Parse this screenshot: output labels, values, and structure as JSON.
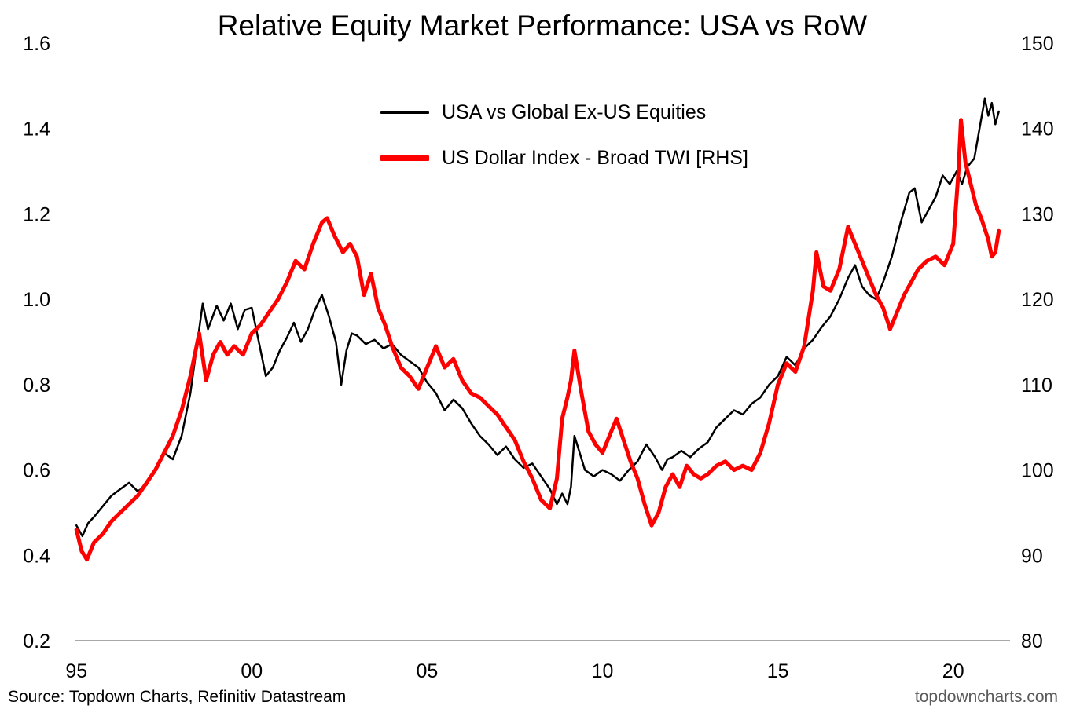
{
  "title": "Relative Equity Market Performance: USA vs RoW",
  "source": "Source: Topdown Charts, Refinitiv Datastream",
  "watermark": "topdowncharts.com",
  "colors": {
    "series_black": "#000000",
    "series_red": "#FF0000",
    "axis_line": "#8c8c8c",
    "watermark_gray": "#595959"
  },
  "legend": [
    {
      "label": "USA vs Global Ex-US Equities",
      "color": "#000000",
      "thickness": 3
    },
    {
      "label": "US Dollar Index - Broad TWI [RHS]",
      "color": "#FF0000",
      "thickness": 7
    }
  ],
  "chart_data": {
    "type": "line",
    "title": "Relative Equity Market Performance: USA vs RoW",
    "grid": false,
    "legend_position": "top-center-inside",
    "x_axis": {
      "range": [
        1994.95,
        2021.62
      ],
      "ticks": [
        1995,
        2000,
        2005,
        2010,
        2015,
        2020
      ],
      "labels": [
        "95",
        "00",
        "05",
        "10",
        "15",
        "20"
      ]
    },
    "left_axis": {
      "range": [
        0.2,
        1.6
      ],
      "ticks": [
        0.2,
        0.4,
        0.6,
        0.8,
        1.0,
        1.2,
        1.4,
        1.6
      ],
      "labels": [
        "0.2",
        "0.4",
        "0.6",
        "0.8",
        "1.0",
        "1.2",
        "1.4",
        "1.6"
      ]
    },
    "right_axis": {
      "range": [
        80,
        150
      ],
      "ticks": [
        80,
        90,
        100,
        110,
        120,
        130,
        140,
        150
      ],
      "labels": [
        "80",
        "90",
        "100",
        "110",
        "120",
        "130",
        "140",
        "150"
      ]
    },
    "series": [
      {
        "name": "USA vs Global Ex-US Equities",
        "axis": "left",
        "color": "#000000",
        "width": 2.5,
        "points": [
          [
            1995.0,
            0.47
          ],
          [
            1995.17,
            0.445
          ],
          [
            1995.33,
            0.475
          ],
          [
            1995.5,
            0.49
          ],
          [
            1995.75,
            0.515
          ],
          [
            1996.0,
            0.54
          ],
          [
            1996.25,
            0.555
          ],
          [
            1996.5,
            0.57
          ],
          [
            1996.75,
            0.55
          ],
          [
            1997.0,
            0.565
          ],
          [
            1997.25,
            0.6
          ],
          [
            1997.5,
            0.64
          ],
          [
            1997.75,
            0.625
          ],
          [
            1998.0,
            0.68
          ],
          [
            1998.25,
            0.78
          ],
          [
            1998.45,
            0.9
          ],
          [
            1998.6,
            0.99
          ],
          [
            1998.75,
            0.93
          ],
          [
            1999.0,
            0.985
          ],
          [
            1999.2,
            0.95
          ],
          [
            1999.4,
            0.99
          ],
          [
            1999.6,
            0.93
          ],
          [
            1999.8,
            0.975
          ],
          [
            2000.0,
            0.98
          ],
          [
            2000.2,
            0.9
          ],
          [
            2000.4,
            0.82
          ],
          [
            2000.6,
            0.84
          ],
          [
            2000.8,
            0.88
          ],
          [
            2001.0,
            0.91
          ],
          [
            2001.2,
            0.945
          ],
          [
            2001.4,
            0.9
          ],
          [
            2001.6,
            0.93
          ],
          [
            2001.8,
            0.975
          ],
          [
            2002.0,
            1.01
          ],
          [
            2002.2,
            0.96
          ],
          [
            2002.4,
            0.9
          ],
          [
            2002.55,
            0.8
          ],
          [
            2002.7,
            0.88
          ],
          [
            2002.85,
            0.92
          ],
          [
            2003.0,
            0.915
          ],
          [
            2003.25,
            0.895
          ],
          [
            2003.5,
            0.905
          ],
          [
            2003.75,
            0.885
          ],
          [
            2004.0,
            0.895
          ],
          [
            2004.25,
            0.87
          ],
          [
            2004.5,
            0.855
          ],
          [
            2004.75,
            0.84
          ],
          [
            2005.0,
            0.805
          ],
          [
            2005.25,
            0.78
          ],
          [
            2005.5,
            0.74
          ],
          [
            2005.75,
            0.765
          ],
          [
            2006.0,
            0.745
          ],
          [
            2006.25,
            0.71
          ],
          [
            2006.5,
            0.68
          ],
          [
            2006.75,
            0.66
          ],
          [
            2007.0,
            0.635
          ],
          [
            2007.25,
            0.655
          ],
          [
            2007.5,
            0.625
          ],
          [
            2007.75,
            0.605
          ],
          [
            2008.0,
            0.615
          ],
          [
            2008.25,
            0.585
          ],
          [
            2008.5,
            0.555
          ],
          [
            2008.7,
            0.52
          ],
          [
            2008.85,
            0.545
          ],
          [
            2009.0,
            0.52
          ],
          [
            2009.1,
            0.56
          ],
          [
            2009.2,
            0.68
          ],
          [
            2009.35,
            0.64
          ],
          [
            2009.5,
            0.6
          ],
          [
            2009.75,
            0.585
          ],
          [
            2010.0,
            0.6
          ],
          [
            2010.25,
            0.59
          ],
          [
            2010.5,
            0.575
          ],
          [
            2010.75,
            0.6
          ],
          [
            2011.0,
            0.62
          ],
          [
            2011.25,
            0.66
          ],
          [
            2011.5,
            0.63
          ],
          [
            2011.7,
            0.6
          ],
          [
            2011.85,
            0.625
          ],
          [
            2012.0,
            0.63
          ],
          [
            2012.25,
            0.645
          ],
          [
            2012.5,
            0.63
          ],
          [
            2012.75,
            0.65
          ],
          [
            2013.0,
            0.665
          ],
          [
            2013.25,
            0.7
          ],
          [
            2013.5,
            0.72
          ],
          [
            2013.75,
            0.74
          ],
          [
            2014.0,
            0.73
          ],
          [
            2014.25,
            0.755
          ],
          [
            2014.5,
            0.77
          ],
          [
            2014.75,
            0.8
          ],
          [
            2015.0,
            0.82
          ],
          [
            2015.25,
            0.865
          ],
          [
            2015.5,
            0.845
          ],
          [
            2015.75,
            0.885
          ],
          [
            2016.0,
            0.905
          ],
          [
            2016.25,
            0.935
          ],
          [
            2016.5,
            0.96
          ],
          [
            2016.75,
            1.0
          ],
          [
            2017.0,
            1.05
          ],
          [
            2017.2,
            1.08
          ],
          [
            2017.4,
            1.03
          ],
          [
            2017.6,
            1.01
          ],
          [
            2017.8,
            1.0
          ],
          [
            2018.0,
            1.04
          ],
          [
            2018.25,
            1.1
          ],
          [
            2018.5,
            1.18
          ],
          [
            2018.75,
            1.25
          ],
          [
            2018.9,
            1.26
          ],
          [
            2019.1,
            1.18
          ],
          [
            2019.3,
            1.21
          ],
          [
            2019.5,
            1.24
          ],
          [
            2019.7,
            1.29
          ],
          [
            2019.9,
            1.27
          ],
          [
            2020.1,
            1.3
          ],
          [
            2020.25,
            1.27
          ],
          [
            2020.4,
            1.31
          ],
          [
            2020.6,
            1.33
          ],
          [
            2020.75,
            1.4
          ],
          [
            2020.9,
            1.47
          ],
          [
            2021.0,
            1.43
          ],
          [
            2021.1,
            1.46
          ],
          [
            2021.2,
            1.41
          ],
          [
            2021.3,
            1.44
          ]
        ]
      },
      {
        "name": "US Dollar Index - Broad TWI [RHS]",
        "axis": "right",
        "color": "#FF0000",
        "width": 5,
        "points": [
          [
            1995.0,
            93
          ],
          [
            1995.15,
            90.5
          ],
          [
            1995.3,
            89.5
          ],
          [
            1995.5,
            91.5
          ],
          [
            1995.75,
            92.5
          ],
          [
            1996.0,
            94
          ],
          [
            1996.25,
            95
          ],
          [
            1996.5,
            96
          ],
          [
            1996.75,
            97
          ],
          [
            1997.0,
            98.5
          ],
          [
            1997.25,
            100
          ],
          [
            1997.5,
            102
          ],
          [
            1997.75,
            104
          ],
          [
            1998.0,
            107
          ],
          [
            1998.25,
            111
          ],
          [
            1998.5,
            116
          ],
          [
            1998.7,
            110.5
          ],
          [
            1998.9,
            113.5
          ],
          [
            1999.1,
            115
          ],
          [
            1999.3,
            113.5
          ],
          [
            1999.5,
            114.5
          ],
          [
            1999.75,
            113.5
          ],
          [
            2000.0,
            116
          ],
          [
            2000.25,
            117
          ],
          [
            2000.5,
            118.5
          ],
          [
            2000.75,
            120
          ],
          [
            2001.0,
            122
          ],
          [
            2001.25,
            124.5
          ],
          [
            2001.5,
            123.5
          ],
          [
            2001.75,
            126.5
          ],
          [
            2002.0,
            129
          ],
          [
            2002.15,
            129.5
          ],
          [
            2002.35,
            127.5
          ],
          [
            2002.6,
            125.5
          ],
          [
            2002.8,
            126.5
          ],
          [
            2003.0,
            125
          ],
          [
            2003.2,
            120.5
          ],
          [
            2003.4,
            123
          ],
          [
            2003.6,
            119
          ],
          [
            2003.8,
            117
          ],
          [
            2004.0,
            114.5
          ],
          [
            2004.25,
            112
          ],
          [
            2004.5,
            111
          ],
          [
            2004.75,
            109.5
          ],
          [
            2005.0,
            112
          ],
          [
            2005.25,
            114.5
          ],
          [
            2005.5,
            112
          ],
          [
            2005.75,
            113
          ],
          [
            2006.0,
            110.5
          ],
          [
            2006.25,
            109
          ],
          [
            2006.5,
            108.5
          ],
          [
            2006.75,
            107.5
          ],
          [
            2007.0,
            106.5
          ],
          [
            2007.25,
            105
          ],
          [
            2007.5,
            103.5
          ],
          [
            2007.75,
            101
          ],
          [
            2008.0,
            99
          ],
          [
            2008.25,
            96.5
          ],
          [
            2008.5,
            95.5
          ],
          [
            2008.7,
            99
          ],
          [
            2008.85,
            106
          ],
          [
            2009.0,
            108.5
          ],
          [
            2009.1,
            110.5
          ],
          [
            2009.2,
            114
          ],
          [
            2009.4,
            109
          ],
          [
            2009.6,
            104.5
          ],
          [
            2009.8,
            103
          ],
          [
            2010.0,
            102
          ],
          [
            2010.2,
            104
          ],
          [
            2010.4,
            106
          ],
          [
            2010.6,
            103.5
          ],
          [
            2010.8,
            101
          ],
          [
            2011.0,
            99
          ],
          [
            2011.2,
            96
          ],
          [
            2011.4,
            93.5
          ],
          [
            2011.6,
            95
          ],
          [
            2011.8,
            98
          ],
          [
            2012.0,
            99.5
          ],
          [
            2012.2,
            98
          ],
          [
            2012.4,
            100.5
          ],
          [
            2012.6,
            99.5
          ],
          [
            2012.8,
            99
          ],
          [
            2013.0,
            99.5
          ],
          [
            2013.25,
            100.5
          ],
          [
            2013.5,
            101
          ],
          [
            2013.75,
            100
          ],
          [
            2014.0,
            100.5
          ],
          [
            2014.25,
            100
          ],
          [
            2014.5,
            102
          ],
          [
            2014.75,
            105.5
          ],
          [
            2015.0,
            110
          ],
          [
            2015.25,
            112.5
          ],
          [
            2015.5,
            111.5
          ],
          [
            2015.75,
            114.5
          ],
          [
            2016.0,
            121
          ],
          [
            2016.1,
            125.5
          ],
          [
            2016.3,
            121.5
          ],
          [
            2016.5,
            121
          ],
          [
            2016.75,
            123.5
          ],
          [
            2017.0,
            128.5
          ],
          [
            2017.2,
            126.5
          ],
          [
            2017.4,
            124.5
          ],
          [
            2017.6,
            122.5
          ],
          [
            2017.8,
            120.5
          ],
          [
            2018.0,
            119
          ],
          [
            2018.2,
            116.5
          ],
          [
            2018.4,
            118.5
          ],
          [
            2018.6,
            120.5
          ],
          [
            2018.8,
            122
          ],
          [
            2019.0,
            123.5
          ],
          [
            2019.25,
            124.5
          ],
          [
            2019.5,
            125
          ],
          [
            2019.75,
            124
          ],
          [
            2020.0,
            126.5
          ],
          [
            2020.15,
            135
          ],
          [
            2020.22,
            141
          ],
          [
            2020.35,
            136
          ],
          [
            2020.5,
            133.5
          ],
          [
            2020.65,
            131
          ],
          [
            2020.8,
            129.5
          ],
          [
            2021.0,
            127
          ],
          [
            2021.1,
            125
          ],
          [
            2021.2,
            125.5
          ],
          [
            2021.3,
            128
          ]
        ]
      }
    ]
  }
}
